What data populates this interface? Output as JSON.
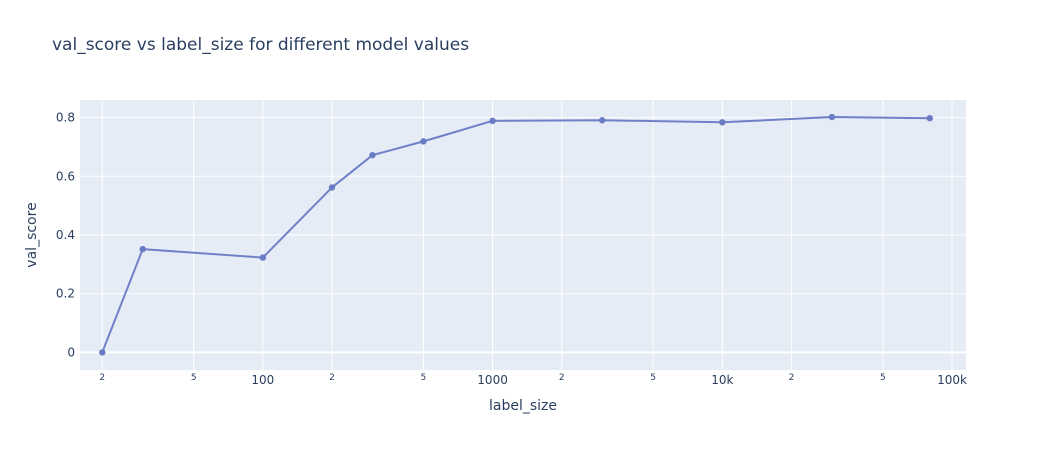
{
  "chart_data": {
    "type": "line",
    "title": "val_score vs label_size for different model values",
    "xlabel": "label_size",
    "ylabel": "val_score",
    "x_scale": "log",
    "xlim": [
      16,
      115000
    ],
    "ylim": [
      -0.06,
      0.86
    ],
    "grid": true,
    "legend": "none",
    "colors": {
      "plot_bg": "#e5ecf6",
      "grid": "#ffffff",
      "line": "#7080c8",
      "marker": "#6b7cc4",
      "text": "#2a3f5f"
    },
    "y_ticks": [
      {
        "value": 0,
        "label": "0"
      },
      {
        "value": 0.2,
        "label": "0.2"
      },
      {
        "value": 0.4,
        "label": "0.4"
      },
      {
        "value": 0.6,
        "label": "0.6"
      },
      {
        "value": 0.8,
        "label": "0.8"
      }
    ],
    "x_ticks_major": [
      {
        "value": 100,
        "label": "100"
      },
      {
        "value": 1000,
        "label": "1000"
      },
      {
        "value": 10000,
        "label": "10k"
      },
      {
        "value": 100000,
        "label": "100k"
      }
    ],
    "x_ticks_minor": [
      {
        "value": 20,
        "label": "2"
      },
      {
        "value": 50,
        "label": "5"
      },
      {
        "value": 200,
        "label": "2"
      },
      {
        "value": 500,
        "label": "5"
      },
      {
        "value": 2000,
        "label": "2"
      },
      {
        "value": 5000,
        "label": "5"
      },
      {
        "value": 20000,
        "label": "2"
      },
      {
        "value": 50000,
        "label": "5"
      }
    ],
    "series": [
      {
        "x": [
          20,
          30,
          100,
          200,
          300,
          500,
          1000,
          3000,
          10000,
          30000,
          80000
        ],
        "y": [
          0.0,
          0.352,
          0.323,
          0.562,
          0.672,
          0.719,
          0.789,
          0.791,
          0.784,
          0.802,
          0.798
        ]
      }
    ]
  }
}
